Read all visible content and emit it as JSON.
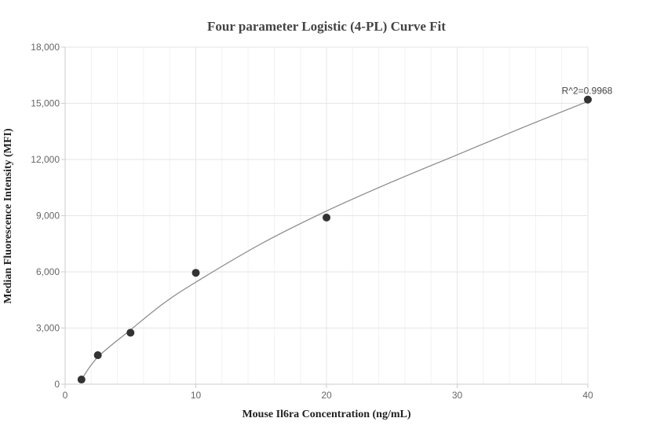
{
  "chart_data": {
    "type": "scatter",
    "title": "Four parameter Logistic (4-PL) Curve Fit",
    "xlabel": "Mouse Il6ra Concentration (ng/mL)",
    "ylabel": "Median Fluorescence Intensity (MFI)",
    "xlim": [
      0,
      40
    ],
    "ylim": [
      0,
      18000
    ],
    "x_ticks": [
      0,
      10,
      20,
      30,
      40
    ],
    "x_tick_labels": [
      "0",
      "10",
      "20",
      "30",
      "40"
    ],
    "y_ticks": [
      0,
      3000,
      6000,
      9000,
      12000,
      15000,
      18000
    ],
    "y_tick_labels": [
      "0",
      "3,000",
      "6,000",
      "9,000",
      "12,000",
      "15,000",
      "18,000"
    ],
    "grid": true,
    "points": [
      {
        "x": 1.25,
        "y": 250
      },
      {
        "x": 2.5,
        "y": 1550
      },
      {
        "x": 5,
        "y": 2750
      },
      {
        "x": 10,
        "y": 5950
      },
      {
        "x": 20,
        "y": 8900
      },
      {
        "x": 40,
        "y": 15200
      }
    ],
    "fit_curve": {
      "x": [
        1.25,
        2.5,
        5,
        7.5,
        10,
        15,
        20,
        25,
        30,
        35,
        40
      ],
      "y": [
        250,
        1450,
        2900,
        4300,
        5450,
        7500,
        9250,
        10800,
        12250,
        13700,
        15100
      ]
    },
    "annotation": "R^2=0.9968",
    "colors": {
      "marker": "#333333",
      "curve": "#888888",
      "grid": "#e6e6e6",
      "axis": "#cccccc"
    }
  }
}
